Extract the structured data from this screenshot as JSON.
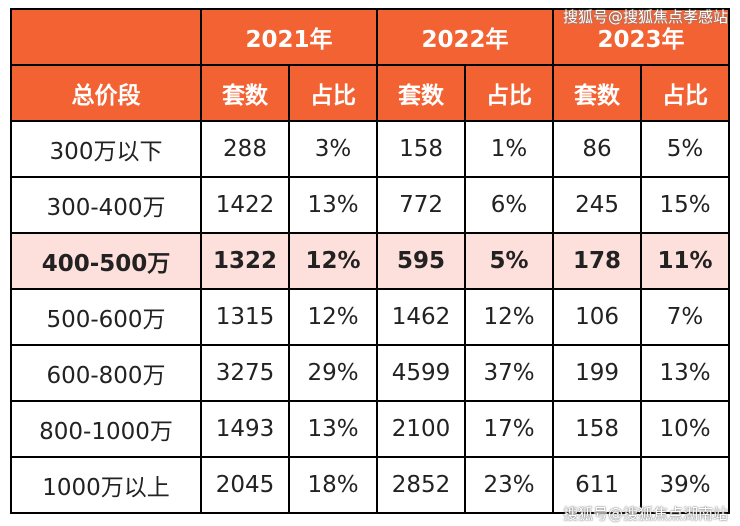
{
  "header": {
    "corner": "",
    "years": [
      "2021年",
      "2022年",
      "2023年"
    ],
    "first_col": "总价段",
    "count_label": "套数",
    "ratio_label": "占比"
  },
  "rows": [
    {
      "range": "300万以下",
      "cells": [
        "288",
        "3%",
        "158",
        "1%",
        "86",
        "5%"
      ]
    },
    {
      "range": "300-400万",
      "cells": [
        "1422",
        "13%",
        "772",
        "6%",
        "245",
        "15%"
      ]
    },
    {
      "range": "400-500万",
      "cells": [
        "1322",
        "12%",
        "595",
        "5%",
        "178",
        "11%"
      ]
    },
    {
      "range": "500-600万",
      "cells": [
        "1315",
        "12%",
        "1462",
        "12%",
        "106",
        "7%"
      ]
    },
    {
      "range": "600-800万",
      "cells": [
        "3275",
        "29%",
        "4599",
        "37%",
        "199",
        "13%"
      ]
    },
    {
      "range": "800-1000万",
      "cells": [
        "1493",
        "13%",
        "2100",
        "17%",
        "158",
        "10%"
      ]
    },
    {
      "range": "1000万以上",
      "cells": [
        "2045",
        "18%",
        "2852",
        "23%",
        "611",
        "39%"
      ]
    }
  ],
  "highlight_row": "400-500万",
  "colors": {
    "header_bg": "#f36233",
    "highlight_bg": "#fde0dc"
  },
  "watermark_top": "搜狐号@搜狐焦点孝感站",
  "watermark_bottom": "搜狐号@搜狐焦点湖南站"
}
